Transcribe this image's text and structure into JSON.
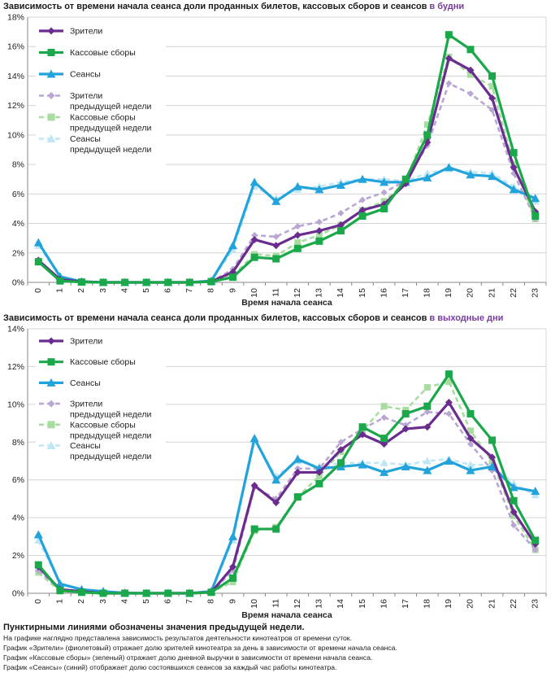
{
  "colors": {
    "viewers": "#6a2c8f",
    "revenue": "#1aa84a",
    "sessions": "#22a3dc",
    "viewers_prev": "#b9a6d2",
    "revenue_prev": "#a9dca0",
    "sessions_prev": "#bfe6f7",
    "grid": "#d4d4d4",
    "axis": "#888888"
  },
  "chart_data": [
    {
      "type": "line",
      "title_prefix": "Зависимость от времени начала сеанса доли проданных билетов, кассовых сборов и сеансов",
      "title_highlight": "в будни",
      "xlabel": "Время начала сеанса",
      "ylabel": "",
      "categories": [
        "0",
        "1",
        "2",
        "3",
        "4",
        "5",
        "6",
        "7",
        "8",
        "9",
        "10",
        "11",
        "12",
        "13",
        "14",
        "15",
        "16",
        "17",
        "18",
        "19",
        "20",
        "21",
        "22",
        "23"
      ],
      "ylim": [
        0,
        18
      ],
      "yticks": [
        "0%",
        "2%",
        "4%",
        "6%",
        "8%",
        "10%",
        "12%",
        "14%",
        "16%",
        "18%"
      ],
      "series": [
        {
          "key": "viewers",
          "name": "Зрители",
          "dashed": false,
          "values": [
            1.5,
            0.2,
            0.05,
            0,
            0,
            0,
            0,
            0,
            0.05,
            0.7,
            2.9,
            2.5,
            3.2,
            3.5,
            3.9,
            4.9,
            5.3,
            6.7,
            9.5,
            15.2,
            14.4,
            12.5,
            7.8,
            4.8
          ]
        },
        {
          "key": "revenue",
          "name": "Кассовые сборы",
          "dashed": false,
          "values": [
            1.4,
            0.1,
            0.02,
            0,
            0,
            0,
            0,
            0,
            0.05,
            0.35,
            1.7,
            1.6,
            2.3,
            2.8,
            3.5,
            4.5,
            5.0,
            7.0,
            10.0,
            16.8,
            15.8,
            14.0,
            8.8,
            4.5
          ]
        },
        {
          "key": "sessions",
          "name": "Сеансы",
          "dashed": false,
          "values": [
            2.7,
            0.4,
            0.05,
            0,
            0,
            0,
            0,
            0,
            0.1,
            2.5,
            6.8,
            5.5,
            6.5,
            6.3,
            6.6,
            7.0,
            6.8,
            6.8,
            7.1,
            7.8,
            7.3,
            7.2,
            6.3,
            5.7
          ]
        },
        {
          "key": "viewers_prev",
          "name": "Зрители предыдущей недели",
          "dashed": true,
          "values": [
            1.5,
            0.2,
            0.05,
            0,
            0,
            0,
            0,
            0,
            0.05,
            0.9,
            3.2,
            3.1,
            3.8,
            4.1,
            4.7,
            5.6,
            6.1,
            6.9,
            9.3,
            13.5,
            12.8,
            11.7,
            7.4,
            4.3
          ]
        },
        {
          "key": "revenue_prev",
          "name": "Кассовые сборы предыдущей недели",
          "dashed": true,
          "values": [
            1.4,
            0.1,
            0.02,
            0,
            0,
            0,
            0,
            0,
            0.05,
            0.45,
            1.9,
            1.8,
            2.7,
            3.2,
            3.9,
            4.9,
            5.5,
            6.8,
            10.7,
            15.3,
            14.1,
            13.3,
            8.0,
            4.3
          ]
        },
        {
          "key": "sessions_prev",
          "name": "Сеансы предыдущей недели",
          "dashed": true,
          "values": [
            2.5,
            0.4,
            0.05,
            0,
            0,
            0,
            0,
            0,
            0.1,
            2.2,
            6.5,
            5.7,
            6.3,
            6.5,
            6.8,
            7.0,
            7.0,
            6.9,
            7.4,
            7.7,
            7.5,
            7.4,
            6.5,
            5.5
          ]
        }
      ],
      "legend": [
        {
          "key": "viewers",
          "label": "Зрители",
          "dashed": false
        },
        {
          "key": "revenue",
          "label": "Кассовые сборы",
          "dashed": false
        },
        {
          "key": "sessions",
          "label": "Сеансы",
          "dashed": false
        },
        {
          "key": "viewers_prev",
          "label1": "Зрители",
          "label2": "предыдущей недели",
          "dashed": true
        },
        {
          "key": "revenue_prev",
          "label1": "Кассовые сборы",
          "label2": "предыдущей недели",
          "dashed": true
        },
        {
          "key": "sessions_prev",
          "label1": "Сеансы",
          "label2": "предыдущей недели",
          "dashed": true
        }
      ]
    },
    {
      "type": "line",
      "title_prefix": "Зависимость от времени начала сеанса доли проданных билетов, кассовых сборов и сеансов",
      "title_highlight": "в выходные дни",
      "xlabel": "Время начала сеанса",
      "ylabel": "",
      "categories": [
        "0",
        "1",
        "2",
        "3",
        "4",
        "5",
        "6",
        "7",
        "8",
        "9",
        "10",
        "11",
        "12",
        "13",
        "14",
        "15",
        "16",
        "17",
        "18",
        "19",
        "20",
        "21",
        "22",
        "23"
      ],
      "ylim": [
        0,
        14
      ],
      "yticks": [
        "0%",
        "2%",
        "4%",
        "6%",
        "8%",
        "10%",
        "12%",
        "14%"
      ],
      "series": [
        {
          "key": "viewers",
          "name": "Зрители",
          "dashed": false,
          "values": [
            1.4,
            0.2,
            0.1,
            0,
            0,
            0,
            0,
            0,
            0.05,
            1.4,
            5.7,
            4.8,
            6.4,
            6.4,
            7.6,
            8.4,
            7.9,
            8.7,
            8.8,
            10.1,
            8.2,
            7.2,
            4.3,
            2.6
          ]
        },
        {
          "key": "revenue",
          "name": "Кассовые сборы",
          "dashed": false,
          "values": [
            1.5,
            0.15,
            0.05,
            0,
            0,
            0,
            0,
            0,
            0.05,
            0.8,
            3.4,
            3.4,
            5.1,
            5.8,
            6.9,
            8.8,
            8.2,
            9.5,
            9.9,
            11.6,
            9.5,
            8.1,
            4.9,
            2.8
          ]
        },
        {
          "key": "sessions",
          "name": "Сеансы",
          "dashed": false,
          "values": [
            3.1,
            0.5,
            0.2,
            0.1,
            0.02,
            0,
            0,
            0,
            0.1,
            3.0,
            8.2,
            6.0,
            7.1,
            6.6,
            6.7,
            6.8,
            6.4,
            6.7,
            6.5,
            7.0,
            6.5,
            6.7,
            5.6,
            5.4
          ]
        },
        {
          "key": "viewers_prev",
          "name": "Зрители предыдущей недели",
          "dashed": true,
          "values": [
            1.2,
            0.2,
            0.1,
            0,
            0,
            0,
            0,
            0,
            0.05,
            1.2,
            5.6,
            5.0,
            6.6,
            6.6,
            8.0,
            8.7,
            9.3,
            8.9,
            9.6,
            9.5,
            7.9,
            6.5,
            3.6,
            2.3
          ]
        },
        {
          "key": "revenue_prev",
          "name": "Кассовые сборы предыдущей недели",
          "dashed": true,
          "values": [
            1.1,
            0.1,
            0.05,
            0,
            0,
            0,
            0,
            0,
            0.05,
            0.6,
            3.3,
            3.5,
            5.1,
            6.2,
            7.5,
            8.6,
            9.9,
            9.7,
            10.9,
            11.2,
            8.6,
            7.0,
            4.1,
            2.3
          ]
        },
        {
          "key": "sessions_prev",
          "name": "Сеансы предыдущей недели",
          "dashed": true,
          "values": [
            2.8,
            0.5,
            0.2,
            0.1,
            0.02,
            0,
            0,
            0,
            0.1,
            2.8,
            8.1,
            6.2,
            7.0,
            6.7,
            6.9,
            6.9,
            6.9,
            6.8,
            7.0,
            7.1,
            6.8,
            6.8,
            5.8,
            5.2
          ]
        }
      ],
      "legend": [
        {
          "key": "viewers",
          "label": "Зрители",
          "dashed": false
        },
        {
          "key": "revenue",
          "label": "Кассовые сборы",
          "dashed": false
        },
        {
          "key": "sessions",
          "label": "Сеансы",
          "dashed": false
        },
        {
          "key": "viewers_prev",
          "label1": "Зрители",
          "label2": "предыдущей недели",
          "dashed": true
        },
        {
          "key": "revenue_prev",
          "label1": "Кассовые сборы",
          "label2": "предыдущей недели",
          "dashed": true
        },
        {
          "key": "sessions_prev",
          "label1": "Сеансы",
          "label2": "предыдущей недели",
          "dashed": true
        }
      ]
    }
  ],
  "notes": {
    "bold": "Пунктирными линиями обозначены значения предыдущей недели.",
    "lines": [
      "На графике наглядно представлена зависимость результатов деятельности кинотеатров от времени суток.",
      "График «Зрители» (фиолетовый) отражает долю зрителей кинотеатра за день в зависимости от времени начала сеанса.",
      "График «Кассовые сборы» (зеленый) отражает долю дневной выручки в зависимости от времени начала сеанса.",
      "График «Сеансы» (синий) отображает долю состоявшихся сеансов за каждый час работы кинотеатра."
    ]
  }
}
